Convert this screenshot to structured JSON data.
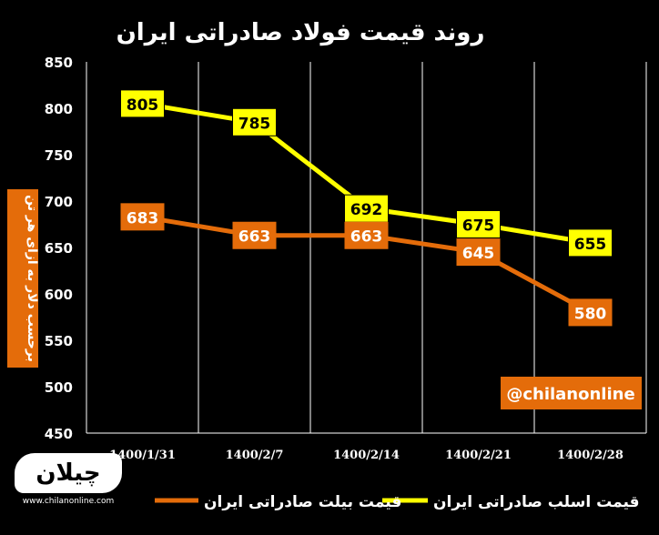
{
  "chart_data": {
    "type": "line",
    "title": "روند قیمت فولاد صادراتی ایران",
    "ylabel": "برحسب دلار به ازای هر تن",
    "xlabel": "",
    "categories": [
      "1400/1/31",
      "1400/2/7",
      "1400/2/14",
      "1400/2/21",
      "1400/2/28"
    ],
    "ylim": [
      450,
      850
    ],
    "yticks": [
      450,
      500,
      550,
      600,
      650,
      700,
      750,
      800,
      850
    ],
    "grid": "vertical",
    "legend_position": "bottom",
    "series": [
      {
        "name": "قیمت اسلب صادراتی ایران",
        "color": "#ffff00",
        "label_bg": "#ffff00",
        "label_color": "#000000",
        "values": [
          805,
          785,
          692,
          675,
          655
        ]
      },
      {
        "name": "قیمت بیلت صادراتی ایران",
        "color": "#e46c0a",
        "label_bg": "#e46c0a",
        "label_color": "#ffffff",
        "values": [
          683,
          663,
          663,
          645,
          580
        ]
      }
    ],
    "annotation": "@chilanonline"
  },
  "logo": {
    "mark": "چیلان",
    "url": "www.chilanonline.com"
  },
  "colors": {
    "background": "#000000",
    "axis_text": "#ffffff",
    "grid": "#ffffff",
    "annotation_bg": "#e46c0a"
  }
}
